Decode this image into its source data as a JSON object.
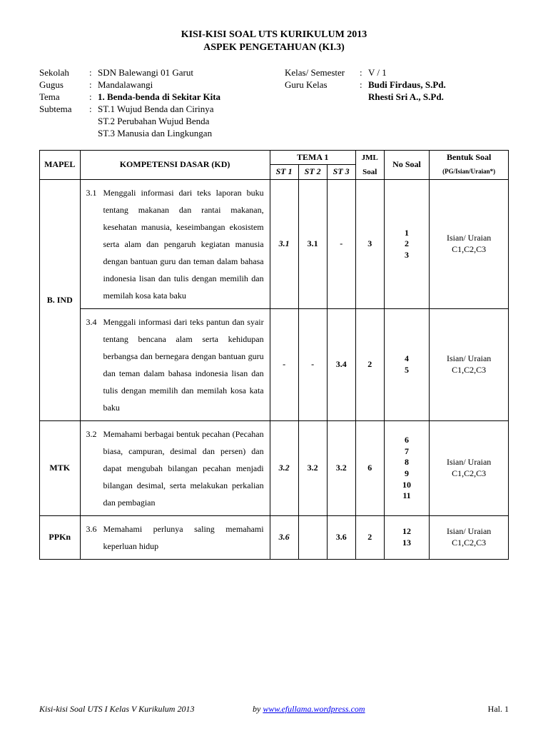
{
  "title": {
    "line1": "KISI-KISI SOAL UTS KURIKULUM 2013",
    "line2": "ASPEK PENGETAHUAN (KI.3)"
  },
  "meta": {
    "left": {
      "sekolah_label": "Sekolah",
      "sekolah": "SDN Balewangi 01 Garut",
      "gugus_label": "Gugus",
      "gugus": "Mandalawangi",
      "tema_label": "Tema",
      "tema": "1. Benda-benda di Sekitar Kita",
      "subtema_label": "Subtema",
      "subtema1": "ST.1 Wujud Benda dan Cirinya",
      "subtema2": "ST.2 Perubahan Wujud Benda",
      "subtema3": "ST.3 Manusia dan Lingkungan"
    },
    "right": {
      "kelas_label": "Kelas/ Semester",
      "kelas": "V / 1",
      "guru_label": "Guru Kelas",
      "guru1": "Budi Firdaus, S.Pd.",
      "guru2": "Rhesti Sri A., S.Pd."
    }
  },
  "headers": {
    "mapel": "MAPEL",
    "kd": "KOMPETENSI DASAR (KD)",
    "tema1": "TEMA 1",
    "st1": "ST 1",
    "st2": "ST 2",
    "st3": "ST 3",
    "jml": "JML",
    "soal": "Soal",
    "nosoal": "No Soal",
    "bentuk": "Bentuk Soal",
    "bentuk_sub": "(PG/Isian/Uraian*)"
  },
  "rows": [
    {
      "mapel": "B. IND",
      "kd_num": "3.1",
      "kd_text": "Menggali informasi dari teks laporan buku tentang makanan dan rantai makanan, kesehatan manusia, keseimbangan ekosistem serta alam dan pengaruh kegiatan manusia dengan bantuan guru dan teman dalam bahasa indonesia lisan dan tulis dengan memilih dan memilah kosa kata baku",
      "st1": "3.1",
      "st2": "3.1",
      "st3": "-",
      "jml": "3",
      "nosoal": "1\n2\n3",
      "bentuk": "Isian/ Uraian\nC1,C2,C3"
    },
    {
      "mapel": "",
      "kd_num": "3.4",
      "kd_text": "Menggali informasi dari teks pantun dan syair tentang bencana alam serta kehidupan berbangsa  dan bernegara dengan bantuan guru dan teman dalam bahasa indonesia lisan dan tulis dengan memilih dan memilah kosa kata baku",
      "st1": "-",
      "st2": "-",
      "st3": "3.4",
      "jml": "2",
      "nosoal": "4\n5",
      "bentuk": "Isian/ Uraian\nC1,C2,C3"
    },
    {
      "mapel": "MTK",
      "kd_num": "3.2",
      "kd_text": "Memahami berbagai bentuk pecahan (Pecahan biasa, campuran, desimal dan persen) dan dapat mengubah bilangan pecahan menjadi bilangan desimal, serta melakukan perkalian dan pembagian",
      "st1": "3.2",
      "st2": "3.2",
      "st3": "3.2",
      "jml": "6",
      "nosoal": "6\n7\n8\n9\n10\n11",
      "bentuk": "Isian/ Uraian\nC1,C2,C3"
    },
    {
      "mapel": "PPKn",
      "kd_num": "3.6",
      "kd_text": "Memahami perlunya saling memahami keperluan hidup",
      "st1": "3.6",
      "st2": "",
      "st3": "3.6",
      "jml": "2",
      "nosoal": "12\n13",
      "bentuk": "Isian/ Uraian\nC1,C2,C3"
    }
  ],
  "footer": {
    "left": "Kisi-kisi Soal UTS I Kelas V Kurikulum 2013",
    "by": "by ",
    "link": "www.efullama.wordpress.com",
    "page": "Hal. 1"
  }
}
